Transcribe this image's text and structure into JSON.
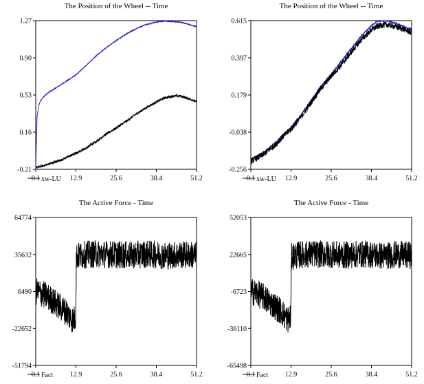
{
  "chart_data": [
    {
      "type": "line",
      "title": "The Position of the Wheel  -- Time",
      "legend": [
        {
          "label": "xw-LU",
          "color": "#000000"
        }
      ],
      "yticks": [
        "1.27",
        "0.90",
        "0.53",
        "0.16",
        "-0.21"
      ],
      "xticks": [
        "0.1",
        "12.9",
        "25.6",
        "38.4",
        "51.2"
      ],
      "xlim": [
        0.1,
        51.2
      ],
      "ylim": [
        -0.21,
        1.27
      ],
      "series": [
        {
          "color": "#2222cc",
          "noise": 0.004,
          "x": [
            0.1,
            0.5,
            1.0,
            1.6,
            2.5,
            4.0,
            6.0,
            8.0,
            10.0,
            12.9,
            16.0,
            19.0,
            22.0,
            25.6,
            29.0,
            32.0,
            35.0,
            38.4,
            40.5,
            42.5,
            44.0,
            46.0,
            48.0,
            50.0,
            51.2
          ],
          "y": [
            -0.21,
            0.3,
            0.42,
            0.47,
            0.51,
            0.55,
            0.59,
            0.63,
            0.67,
            0.73,
            0.82,
            0.91,
            0.99,
            1.07,
            1.14,
            1.19,
            1.23,
            1.255,
            1.265,
            1.265,
            1.26,
            1.255,
            1.24,
            1.22,
            1.21
          ]
        },
        {
          "color": "#000000",
          "noise": 0.012,
          "x": [
            0.1,
            2.0,
            4.0,
            6.0,
            8.0,
            10.0,
            12.9,
            16.0,
            19.0,
            22.0,
            25.6,
            29.0,
            32.0,
            35.0,
            38.4,
            41.0,
            44.0,
            46.0,
            48.0,
            50.0,
            51.2
          ],
          "y": [
            -0.19,
            -0.18,
            -0.16,
            -0.14,
            -0.12,
            -0.09,
            -0.05,
            0.0,
            0.06,
            0.13,
            0.2,
            0.27,
            0.34,
            0.4,
            0.46,
            0.5,
            0.52,
            0.52,
            0.5,
            0.48,
            0.46
          ]
        }
      ]
    },
    {
      "type": "line",
      "title": "The Position of the Wheel  -- Time",
      "legend": [
        {
          "label": "xw-LU",
          "color": "#000000"
        }
      ],
      "yticks": [
        "0.615",
        "0.397",
        "0.179",
        "-0.038",
        "-0.256"
      ],
      "xticks": [
        "0.1",
        "12.9",
        "25.6",
        "38.4",
        "51.2"
      ],
      "xlim": [
        0.1,
        51.2
      ],
      "ylim": [
        -0.256,
        0.615
      ],
      "series": [
        {
          "color": "#2222cc",
          "noise": 0.006,
          "x": [
            0.1,
            2.0,
            4.0,
            6.0,
            8.0,
            10.0,
            12.9,
            16.0,
            19.0,
            22.0,
            25.6,
            29.0,
            32.0,
            35.0,
            38.4,
            40.0,
            42.0,
            44.0,
            46.0,
            48.0,
            50.0,
            51.2
          ],
          "y": [
            -0.2,
            -0.18,
            -0.16,
            -0.13,
            -0.1,
            -0.06,
            -0.01,
            0.06,
            0.14,
            0.22,
            0.3,
            0.38,
            0.45,
            0.52,
            0.585,
            0.61,
            0.615,
            0.612,
            0.6,
            0.585,
            0.57,
            0.565
          ]
        },
        {
          "color": "#000000",
          "noise": 0.018,
          "x": [
            0.1,
            2.0,
            4.0,
            6.0,
            8.0,
            10.0,
            12.9,
            16.0,
            19.0,
            22.0,
            25.6,
            29.0,
            32.0,
            35.0,
            38.4,
            40.0,
            42.0,
            44.0,
            46.0,
            48.0,
            50.0,
            51.2
          ],
          "y": [
            -0.21,
            -0.19,
            -0.17,
            -0.14,
            -0.11,
            -0.07,
            -0.02,
            0.05,
            0.13,
            0.21,
            0.29,
            0.36,
            0.43,
            0.5,
            0.56,
            0.58,
            0.59,
            0.59,
            0.58,
            0.57,
            0.555,
            0.545
          ]
        }
      ]
    },
    {
      "type": "line",
      "title": "The Active Force - Time",
      "legend": [
        {
          "label": "Fact",
          "color": "#000000"
        }
      ],
      "yticks": [
        "64774",
        "35632",
        "6490",
        "-22652",
        "-51794"
      ],
      "xticks": [
        "0.1",
        "12.9",
        "25.6",
        "38.4",
        "51.2"
      ],
      "xlim": [
        0.1,
        51.2
      ],
      "ylim": [
        -51794,
        64774
      ],
      "series": [
        {
          "color": "#000000",
          "noise": 11000,
          "x": [
            0.1,
            2.0,
            4.0,
            6.0,
            8.0,
            10.0,
            11.0,
            12.0,
            12.8,
            13.0,
            16.0,
            20.0,
            25.6,
            30.0,
            35.0,
            38.4,
            42.0,
            46.0,
            51.2
          ],
          "y": [
            6490,
            5000,
            2000,
            -2000,
            -6000,
            -10000,
            -14000,
            -16000,
            -14000,
            34000,
            35632,
            36000,
            35632,
            35000,
            36000,
            35632,
            34500,
            35500,
            35000
          ]
        }
      ]
    },
    {
      "type": "line",
      "title": "The Active Force - Time",
      "legend": [
        {
          "label": "Fact",
          "color": "#000000"
        }
      ],
      "yticks": [
        "52053",
        "22665",
        "-6723",
        "-36110",
        "-65498"
      ],
      "xticks": [
        "0.1",
        "12.9",
        "25.6",
        "38.4",
        "51.2"
      ],
      "xlim": [
        0.1,
        51.2
      ],
      "ylim": [
        -65498,
        52053
      ],
      "series": [
        {
          "color": "#000000",
          "noise": 11000,
          "x": [
            0.1,
            2.0,
            4.0,
            6.0,
            8.0,
            10.0,
            11.0,
            12.0,
            12.8,
            13.0,
            16.0,
            20.0,
            25.6,
            30.0,
            35.0,
            38.4,
            42.0,
            46.0,
            51.2
          ],
          "y": [
            -6723,
            -8000,
            -11000,
            -15000,
            -19000,
            -23000,
            -27000,
            -29000,
            -27000,
            21000,
            22665,
            23000,
            22665,
            22000,
            23000,
            22665,
            21500,
            22500,
            22000
          ]
        }
      ]
    }
  ]
}
